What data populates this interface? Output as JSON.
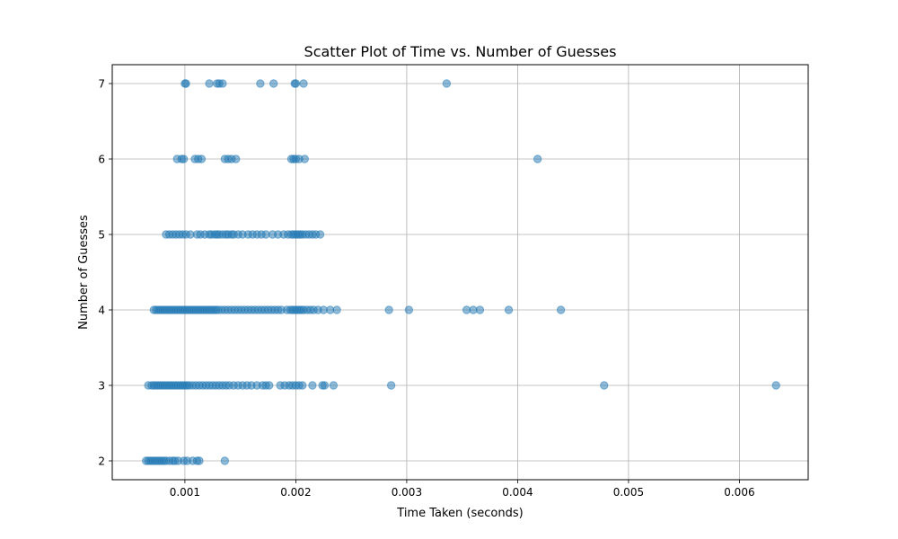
{
  "chart_data": {
    "type": "scatter",
    "title": "Scatter Plot of Time vs. Number of Guesses",
    "xlabel": "Time Taken (seconds)",
    "ylabel": "Number of Guesses",
    "xlim": [
      0.000345,
      0.00662
    ],
    "ylim": [
      1.75,
      7.25
    ],
    "xticks": [
      0.001,
      0.002,
      0.003,
      0.004,
      0.005,
      0.006
    ],
    "xtick_labels": [
      "0.001",
      "0.002",
      "0.003",
      "0.004",
      "0.005",
      "0.006"
    ],
    "yticks": [
      2,
      3,
      4,
      5,
      6,
      7
    ],
    "ytick_labels": [
      "2",
      "3",
      "4",
      "5",
      "6",
      "7"
    ],
    "grid": true,
    "marker_color": "#1f77b4",
    "marker_alpha": 0.5,
    "series": [
      {
        "x": [
          0.00101,
          0.001,
          0.00122,
          0.00129,
          0.00131,
          0.00134,
          0.00168,
          0.0018,
          0.00199,
          0.002,
          0.00207,
          0.00336,
          0.00093,
          0.00097,
          0.00099,
          0.00109,
          0.00112,
          0.00115,
          0.00136,
          0.00139,
          0.00142,
          0.00146,
          0.00196,
          0.00198,
          0.002,
          0.00203,
          0.00208,
          0.00418,
          0.00083,
          0.00086,
          0.00089,
          0.00092,
          0.00095,
          0.00098,
          0.00101,
          0.00105,
          0.00111,
          0.00114,
          0.00118,
          0.00122,
          0.00124,
          0.00127,
          0.00129,
          0.00131,
          0.00134,
          0.00137,
          0.00139,
          0.00142,
          0.00144,
          0.00148,
          0.00152,
          0.00157,
          0.00161,
          0.00165,
          0.00169,
          0.00173,
          0.00179,
          0.00184,
          0.00189,
          0.00193,
          0.00196,
          0.00198,
          0.002,
          0.00202,
          0.00204,
          0.00206,
          0.00209,
          0.00212,
          0.00215,
          0.00218,
          0.00222,
          0.00072,
          0.00074,
          0.00076,
          0.00078,
          0.0008,
          0.00082,
          0.00084,
          0.00086,
          0.00088,
          0.0009,
          0.00092,
          0.00094,
          0.00096,
          0.00098,
          0.001,
          0.00102,
          0.00104,
          0.00106,
          0.00108,
          0.0011,
          0.00112,
          0.00114,
          0.00116,
          0.00118,
          0.0012,
          0.00122,
          0.00124,
          0.00126,
          0.00128,
          0.0013,
          0.00133,
          0.00136,
          0.00139,
          0.00142,
          0.00145,
          0.00148,
          0.00151,
          0.00154,
          0.00157,
          0.0016,
          0.00163,
          0.00166,
          0.00169,
          0.00172,
          0.00175,
          0.00178,
          0.00181,
          0.00184,
          0.00187,
          0.00192,
          0.00195,
          0.00197,
          0.00199,
          0.00201,
          0.00203,
          0.00205,
          0.00207,
          0.0021,
          0.00213,
          0.00216,
          0.0022,
          0.00225,
          0.00231,
          0.00237,
          0.00284,
          0.00302,
          0.00354,
          0.0036,
          0.00366,
          0.00392,
          0.00439,
          0.00067,
          0.0007,
          0.00072,
          0.00074,
          0.00076,
          0.00078,
          0.0008,
          0.00082,
          0.00084,
          0.00086,
          0.00088,
          0.0009,
          0.00092,
          0.00094,
          0.00096,
          0.00098,
          0.001,
          0.00102,
          0.00104,
          0.00107,
          0.0011,
          0.00113,
          0.00116,
          0.00119,
          0.00122,
          0.00125,
          0.00128,
          0.00131,
          0.00134,
          0.00137,
          0.0014,
          0.00144,
          0.00148,
          0.00152,
          0.00156,
          0.0016,
          0.00165,
          0.0017,
          0.00173,
          0.00176,
          0.00186,
          0.0019,
          0.00194,
          0.00197,
          0.002,
          0.00203,
          0.00206,
          0.00215,
          0.00224,
          0.00226,
          0.00234,
          0.00286,
          0.00478,
          0.00633,
          0.00065,
          0.00067,
          0.00069,
          0.00071,
          0.00073,
          0.00075,
          0.00077,
          0.00079,
          0.00081,
          0.00083,
          0.00086,
          0.00089,
          0.00091,
          0.00094,
          0.00099,
          0.00102,
          0.00107,
          0.00111,
          0.00113,
          0.00136
        ],
        "y": [
          7,
          7,
          7,
          7,
          7,
          7,
          7,
          7,
          7,
          7,
          7,
          7,
          6,
          6,
          6,
          6,
          6,
          6,
          6,
          6,
          6,
          6,
          6,
          6,
          6,
          6,
          6,
          6,
          5,
          5,
          5,
          5,
          5,
          5,
          5,
          5,
          5,
          5,
          5,
          5,
          5,
          5,
          5,
          5,
          5,
          5,
          5,
          5,
          5,
          5,
          5,
          5,
          5,
          5,
          5,
          5,
          5,
          5,
          5,
          5,
          5,
          5,
          5,
          5,
          5,
          5,
          5,
          5,
          5,
          5,
          5,
          4,
          4,
          4,
          4,
          4,
          4,
          4,
          4,
          4,
          4,
          4,
          4,
          4,
          4,
          4,
          4,
          4,
          4,
          4,
          4,
          4,
          4,
          4,
          4,
          4,
          4,
          4,
          4,
          4,
          4,
          4,
          4,
          4,
          4,
          4,
          4,
          4,
          4,
          4,
          4,
          4,
          4,
          4,
          4,
          4,
          4,
          4,
          4,
          4,
          4,
          4,
          4,
          4,
          4,
          4,
          4,
          4,
          4,
          4,
          4,
          4,
          4,
          4,
          4,
          4,
          4,
          4,
          4,
          4,
          4,
          4,
          3,
          3,
          3,
          3,
          3,
          3,
          3,
          3,
          3,
          3,
          3,
          3,
          3,
          3,
          3,
          3,
          3,
          3,
          3,
          3,
          3,
          3,
          3,
          3,
          3,
          3,
          3,
          3,
          3,
          3,
          3,
          3,
          3,
          3,
          3,
          3,
          3,
          3,
          3,
          3,
          3,
          3,
          3,
          3,
          3,
          3,
          3,
          3,
          3,
          3,
          3,
          3,
          3,
          3,
          2,
          2,
          2,
          2,
          2,
          2,
          2,
          2,
          2,
          2,
          2,
          2,
          2,
          2,
          2,
          2,
          2,
          2,
          2,
          2
        ]
      }
    ]
  }
}
